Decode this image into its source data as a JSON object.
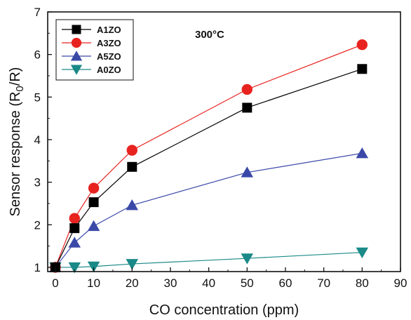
{
  "chart_data": {
    "type": "line",
    "xlabel": "CO concentration (ppm)",
    "ylabel_main": "Sensor response  (R",
    "ylabel_sub": "0",
    "ylabel_tail": "/R)",
    "annotation": "300°C",
    "xlim": [
      -2,
      90
    ],
    "ylim": [
      0.9,
      7
    ],
    "xticks": [
      0,
      10,
      20,
      30,
      40,
      50,
      60,
      70,
      80,
      90
    ],
    "yticks": [
      1,
      2,
      3,
      4,
      5,
      6,
      7
    ],
    "legend_position": "top-left",
    "series": [
      {
        "name": "A1ZO",
        "marker": "square",
        "color": "#000000",
        "line_color": "#000000",
        "x": [
          0,
          5,
          10,
          20,
          50,
          80
        ],
        "y": [
          1.0,
          1.92,
          2.53,
          3.36,
          4.75,
          5.66
        ]
      },
      {
        "name": "A3ZO",
        "marker": "circle",
        "color": "#e8231f",
        "line_color": "#e8231f",
        "x": [
          0,
          5,
          10,
          20,
          50,
          80
        ],
        "y": [
          1.0,
          2.15,
          2.86,
          3.75,
          5.18,
          6.23
        ]
      },
      {
        "name": "A5ZO",
        "marker": "triangle-up",
        "color": "#3a49a8",
        "line_color": "#3a49a8",
        "x": [
          0,
          5,
          10,
          20,
          50,
          80
        ],
        "y": [
          1.0,
          1.58,
          1.97,
          2.46,
          3.23,
          3.68
        ]
      },
      {
        "name": "A0ZO",
        "marker": "triangle-down",
        "color": "#1a8a88",
        "line_color": "#1a8a88",
        "x": [
          0,
          5,
          10,
          20,
          50,
          80
        ],
        "y": [
          1.0,
          1.0,
          1.02,
          1.08,
          1.21,
          1.35
        ]
      }
    ]
  }
}
